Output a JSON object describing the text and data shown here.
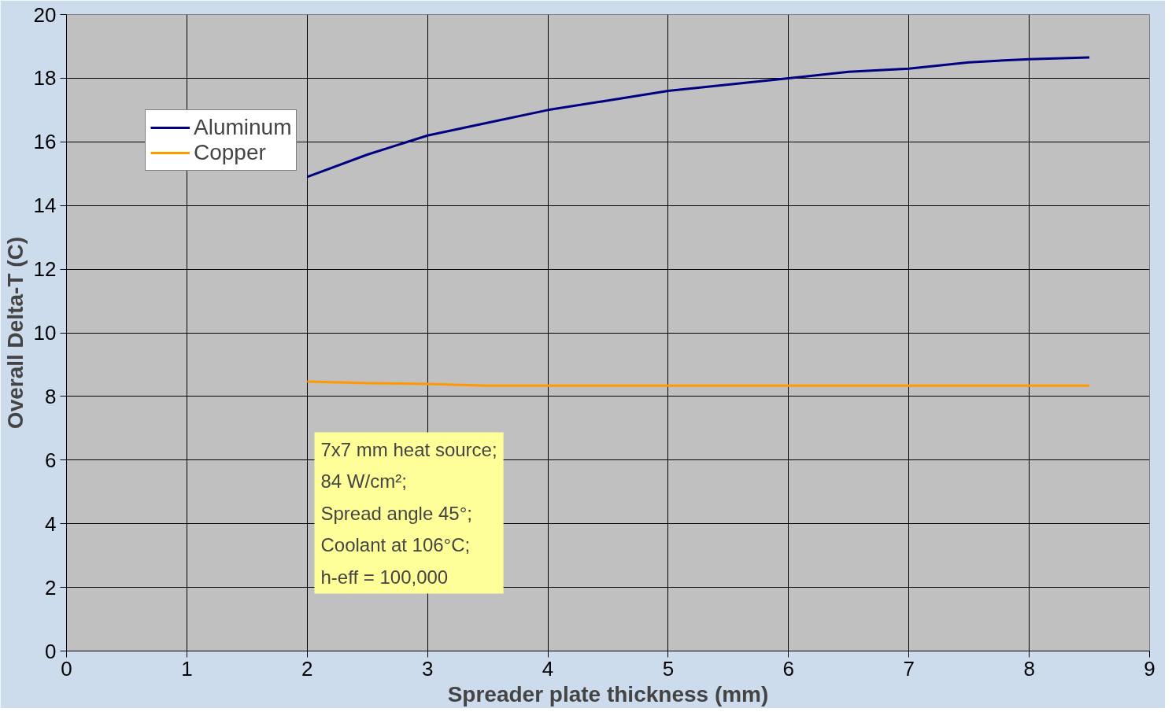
{
  "chart_data": {
    "type": "line",
    "xlabel": "Spreader plate thickness (mm)",
    "ylabel": "Overall Delta-T (C)",
    "x": [
      2,
      2.5,
      3,
      3.5,
      4,
      4.5,
      5,
      5.5,
      6,
      6.5,
      7,
      7.5,
      8,
      8.5
    ],
    "series": [
      {
        "name": "Aluminum",
        "color": "#000080",
        "values": [
          14.9,
          15.6,
          16.2,
          16.6,
          17.0,
          17.3,
          17.6,
          17.8,
          18.0,
          18.2,
          18.3,
          18.5,
          18.6,
          18.65
        ]
      },
      {
        "name": "Copper",
        "color": "#ff9900",
        "values": [
          8.47,
          8.42,
          8.39,
          8.34,
          8.34,
          8.34,
          8.34,
          8.34,
          8.34,
          8.34,
          8.34,
          8.34,
          8.34,
          8.34
        ]
      }
    ],
    "xlim": [
      0,
      9
    ],
    "xticks": [
      0,
      1,
      2,
      3,
      4,
      5,
      6,
      7,
      8,
      9
    ],
    "ylim": [
      0,
      20
    ],
    "yticks": [
      0,
      2,
      4,
      6,
      8,
      10,
      12,
      14,
      16,
      18,
      20
    ],
    "grid": true,
    "legend": "top left",
    "marker": "none",
    "line_style": "solid",
    "annotations": [
      "7x7 mm heat source;\n84 W/cm²;\nSpread angle 45°;\nCoolant at 106°C;\nh-eff = 100,000"
    ]
  }
}
